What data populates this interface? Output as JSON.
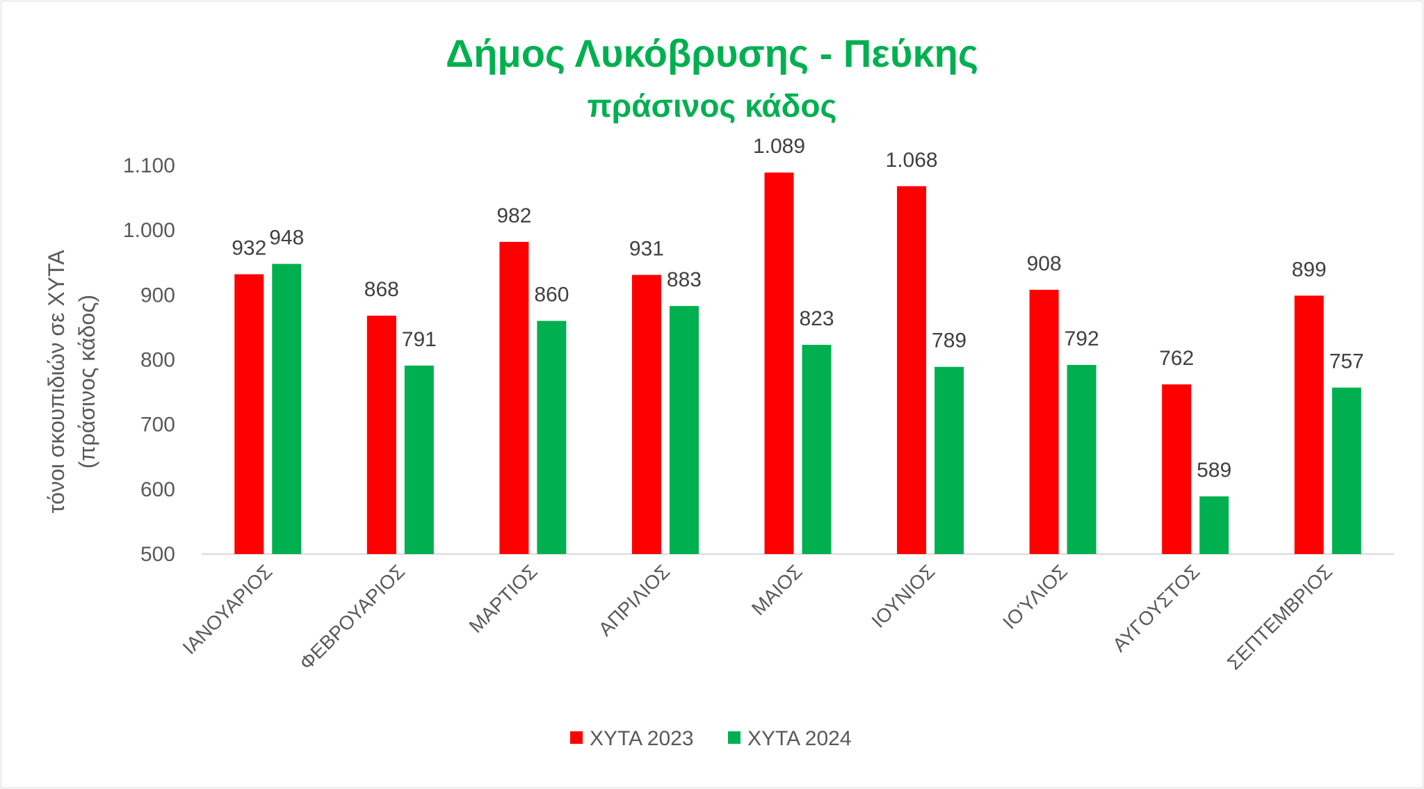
{
  "chart_data": {
    "type": "bar",
    "title": "Δήμος Λυκόβρυσης - Πεύκης",
    "subtitle": "πράσινος κάδος",
    "ylabel_line1": "τόνοι σκουπιδιών σε ΧΥΤΑ",
    "ylabel_line2": "(πράσινος κάδος)",
    "ylim": [
      500,
      1100
    ],
    "yticks": [
      500,
      600,
      700,
      800,
      900,
      1000,
      1100
    ],
    "ytick_labels": [
      "500",
      "600",
      "700",
      "800",
      "900",
      "1.000",
      "1.100"
    ],
    "grid": false,
    "legend_position": "bottom",
    "categories": [
      "ΙΑΝΟΥΑΡΙΟΣ",
      "ΦΕΒΡΟΥΑΡΙΟΣ",
      "ΜΑΡΤΙΟΣ",
      "ΑΠΡΙΛΙΟΣ",
      "ΜΑΙΟΣ",
      "ΙΟΥΝΙΟΣ",
      "ΙΟΎΛΙΟΣ",
      "ΑΥΓΟΥΣΤΟΣ",
      "ΣΕΠΤΕΜΒΡΙΟΣ"
    ],
    "series": [
      {
        "name": "ΧΥΤΑ 2023",
        "color": "#ff0000",
        "values": [
          932,
          868,
          982,
          931,
          1089,
          1068,
          908,
          762,
          899
        ],
        "labels": [
          "932",
          "868",
          "982",
          "931",
          "1.089",
          "1.068",
          "908",
          "762",
          "899"
        ]
      },
      {
        "name": "ΧΥΤΑ 2024",
        "color": "#00b050",
        "values": [
          948,
          791,
          860,
          883,
          823,
          789,
          792,
          589,
          757
        ],
        "labels": [
          "948",
          "791",
          "860",
          "883",
          "823",
          "789",
          "792",
          "589",
          "757"
        ]
      }
    ]
  }
}
